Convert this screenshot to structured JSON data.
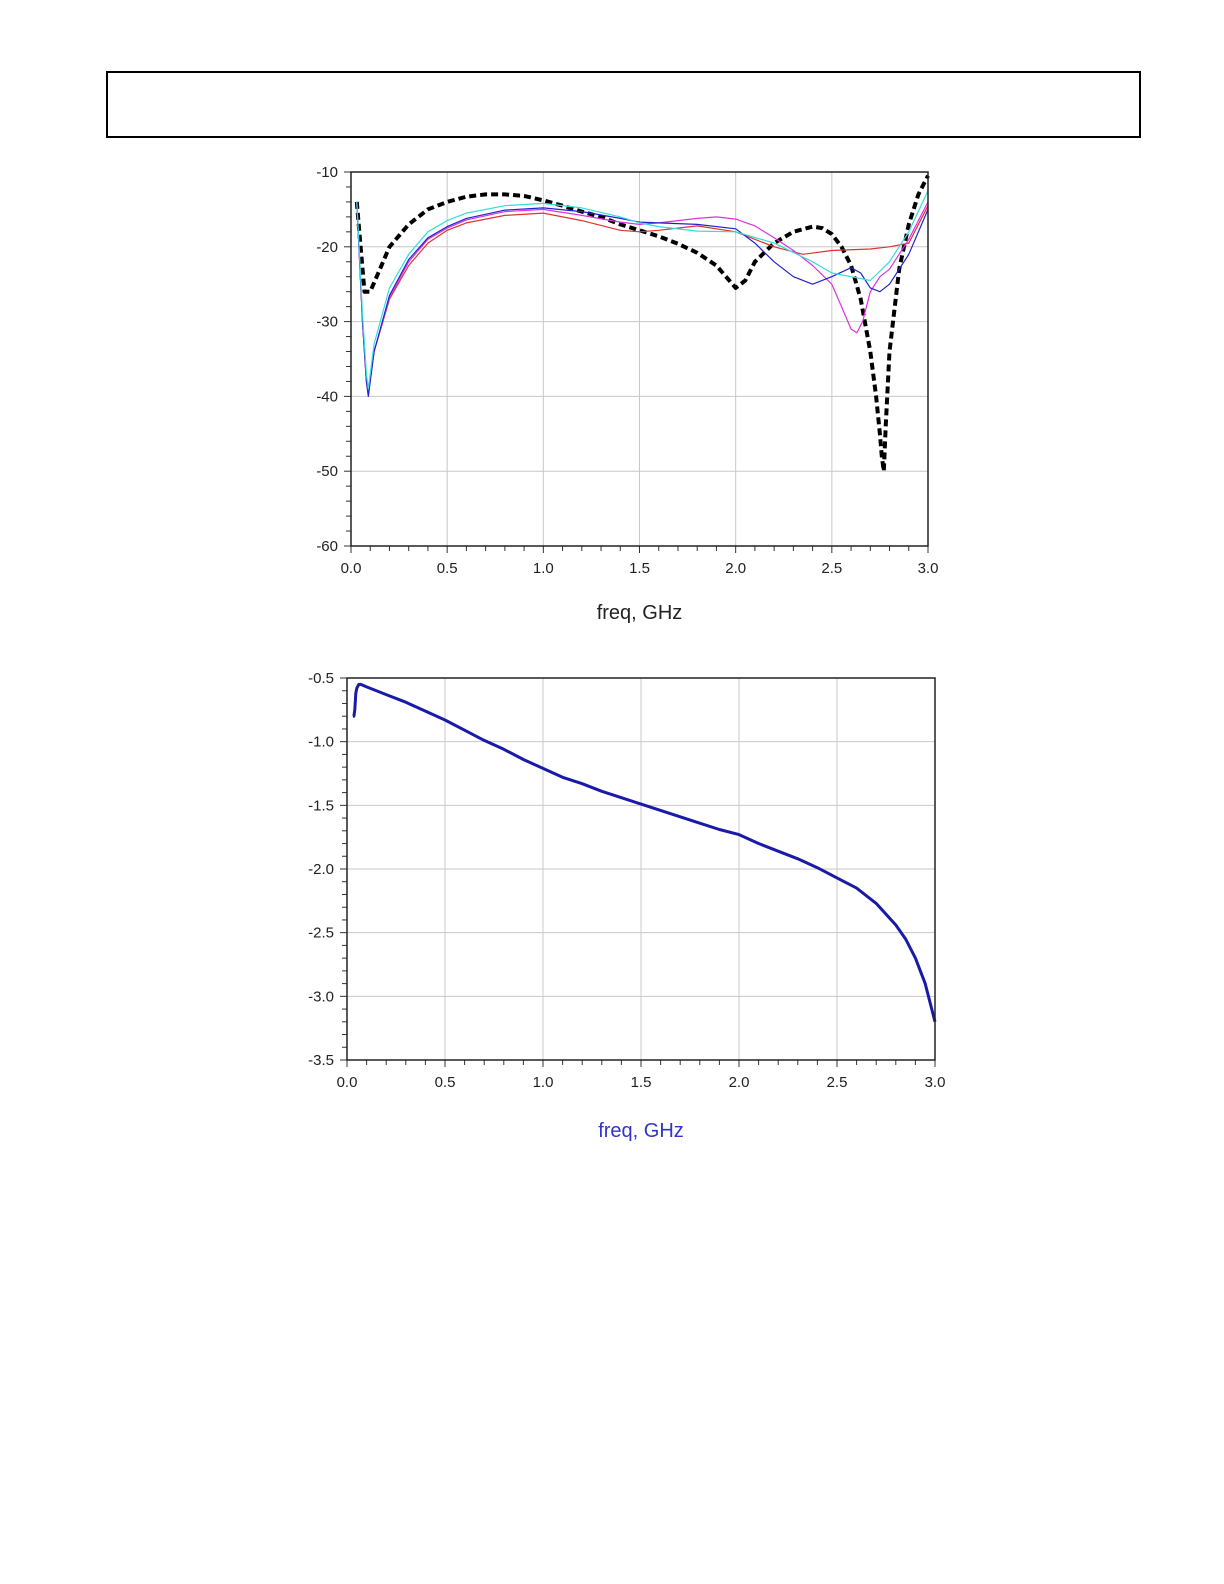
{
  "header": {
    "text": ""
  },
  "chart_data": [
    {
      "type": "line",
      "title": "",
      "xlabel": "freq, GHz",
      "ylabel": "",
      "xlim": [
        0.0,
        3.0
      ],
      "ylim": [
        -60,
        -10
      ],
      "xticks": [
        "0.0",
        "0.5",
        "1.0",
        "1.5",
        "2.0",
        "2.5",
        "3.0"
      ],
      "yticks": [
        "-10",
        "-20",
        "-30",
        "-40",
        "-50",
        "-60"
      ],
      "xlabel_color": "#222222",
      "grid": true,
      "series": [
        {
          "style": "dashed-thick",
          "color": "#000000",
          "x": [
            0.03,
            0.05,
            0.07,
            0.1,
            0.15,
            0.2,
            0.3,
            0.4,
            0.5,
            0.6,
            0.7,
            0.8,
            0.9,
            1.0,
            1.1,
            1.2,
            1.3,
            1.4,
            1.5,
            1.6,
            1.7,
            1.8,
            1.9,
            1.95,
            2.0,
            2.05,
            2.1,
            2.2,
            2.3,
            2.4,
            2.45,
            2.5,
            2.55,
            2.6,
            2.65,
            2.7,
            2.73,
            2.75,
            2.76,
            2.77,
            2.78,
            2.8,
            2.85,
            2.9,
            2.95,
            3.0
          ],
          "y": [
            -14,
            -20,
            -26,
            -26,
            -23,
            -20,
            -17,
            -15,
            -14,
            -13.3,
            -13,
            -13,
            -13.2,
            -13.8,
            -14.5,
            -15.3,
            -16,
            -17,
            -17.8,
            -18.6,
            -19.6,
            -20.8,
            -22.5,
            -24,
            -25.5,
            -24.5,
            -22,
            -19.5,
            -18,
            -17.3,
            -17.5,
            -18.3,
            -20,
            -22.5,
            -27,
            -34,
            -40,
            -45,
            -48,
            -50,
            -44,
            -34,
            -23,
            -17,
            -13,
            -10.5
          ]
        },
        {
          "style": "solid",
          "color": "#dd3333",
          "x": [
            0.03,
            0.06,
            0.08,
            0.09,
            0.12,
            0.2,
            0.3,
            0.4,
            0.5,
            0.6,
            0.8,
            1.0,
            1.2,
            1.4,
            1.5,
            1.6,
            1.8,
            2.0,
            2.2,
            2.35,
            2.5,
            2.7,
            2.8,
            2.9,
            3.0
          ],
          "y": [
            -14,
            -30,
            -38,
            -39.5,
            -34,
            -27,
            -22.5,
            -19.5,
            -17.8,
            -16.8,
            -15.8,
            -15.5,
            -16.5,
            -17.8,
            -18,
            -17.8,
            -17.2,
            -18,
            -20,
            -21,
            -20.5,
            -20.3,
            -20,
            -19.5,
            -14.5
          ]
        },
        {
          "style": "solid",
          "color": "#dd33dd",
          "x": [
            0.03,
            0.06,
            0.08,
            0.09,
            0.12,
            0.2,
            0.3,
            0.4,
            0.5,
            0.6,
            0.8,
            1.0,
            1.2,
            1.4,
            1.5,
            1.6,
            1.8,
            1.9,
            2.0,
            2.1,
            2.2,
            2.3,
            2.4,
            2.5,
            2.55,
            2.6,
            2.63,
            2.66,
            2.7,
            2.75,
            2.8,
            2.9,
            3.0
          ],
          "y": [
            -14,
            -30,
            -38,
            -39.8,
            -34,
            -26.8,
            -22,
            -19,
            -17.5,
            -16.4,
            -15.3,
            -15,
            -15.8,
            -16.7,
            -17,
            -16.8,
            -16.2,
            -16,
            -16.3,
            -17.2,
            -18.8,
            -20.5,
            -22.5,
            -25,
            -28,
            -31,
            -31.5,
            -30,
            -26,
            -24,
            -23,
            -19,
            -14
          ]
        },
        {
          "style": "solid",
          "color": "#2222cc",
          "x": [
            0.03,
            0.06,
            0.08,
            0.09,
            0.12,
            0.2,
            0.3,
            0.4,
            0.5,
            0.6,
            0.8,
            1.0,
            1.2,
            1.4,
            1.5,
            1.6,
            1.8,
            2.0,
            2.1,
            2.2,
            2.3,
            2.4,
            2.5,
            2.6,
            2.65,
            2.7,
            2.75,
            2.8,
            2.9,
            3.0
          ],
          "y": [
            -14,
            -30,
            -38,
            -40,
            -34,
            -26.5,
            -21.7,
            -18.8,
            -17.3,
            -16.2,
            -15.1,
            -14.8,
            -15.3,
            -16.2,
            -16.7,
            -16.8,
            -17,
            -17.6,
            -19.5,
            -22,
            -24,
            -25,
            -24,
            -22.8,
            -23.5,
            -25.5,
            -26,
            -25,
            -21,
            -15
          ]
        },
        {
          "style": "solid",
          "color": "#33dddd",
          "x": [
            0.03,
            0.06,
            0.08,
            0.09,
            0.12,
            0.2,
            0.3,
            0.4,
            0.5,
            0.6,
            0.8,
            1.0,
            1.2,
            1.4,
            1.5,
            1.6,
            1.8,
            2.0,
            2.2,
            2.4,
            2.5,
            2.6,
            2.7,
            2.8,
            2.9,
            3.0
          ],
          "y": [
            -14,
            -29,
            -37,
            -39,
            -33,
            -25.5,
            -21,
            -18,
            -16.5,
            -15.5,
            -14.5,
            -14.2,
            -14.8,
            -16,
            -16.8,
            -17.3,
            -17.9,
            -18,
            -19.5,
            -22,
            -23.5,
            -24,
            -24.5,
            -22,
            -18,
            -12.5
          ]
        }
      ]
    },
    {
      "type": "line",
      "title": "",
      "xlabel": "freq, GHz",
      "ylabel": "",
      "xlim": [
        0.0,
        3.0
      ],
      "ylim": [
        -3.5,
        -0.5
      ],
      "xticks": [
        "0.0",
        "0.5",
        "1.0",
        "1.5",
        "2.0",
        "2.5",
        "3.0"
      ],
      "yticks": [
        "-0.5",
        "-1.0",
        "-1.5",
        "-2.0",
        "-2.5",
        "-3.0",
        "-3.5"
      ],
      "xlabel_color": "#3333cc",
      "grid": true,
      "series": [
        {
          "style": "solid-thick",
          "color": "#1a1aa8",
          "x": [
            0.03,
            0.035,
            0.04,
            0.045,
            0.05,
            0.06,
            0.07,
            0.1,
            0.2,
            0.3,
            0.4,
            0.5,
            0.6,
            0.7,
            0.8,
            0.9,
            1.0,
            1.1,
            1.2,
            1.3,
            1.4,
            1.5,
            1.6,
            1.7,
            1.8,
            1.9,
            2.0,
            2.1,
            2.2,
            2.3,
            2.4,
            2.5,
            2.6,
            2.7,
            2.8,
            2.85,
            2.9,
            2.95,
            3.0
          ],
          "y": [
            -0.8,
            -0.8,
            -0.75,
            -0.62,
            -0.58,
            -0.55,
            -0.55,
            -0.57,
            -0.63,
            -0.69,
            -0.76,
            -0.83,
            -0.91,
            -0.99,
            -1.06,
            -1.14,
            -1.21,
            -1.28,
            -1.33,
            -1.39,
            -1.44,
            -1.49,
            -1.54,
            -1.59,
            -1.64,
            -1.69,
            -1.73,
            -1.8,
            -1.86,
            -1.92,
            -1.99,
            -2.07,
            -2.15,
            -2.27,
            -2.44,
            -2.55,
            -2.7,
            -2.9,
            -3.2
          ]
        }
      ]
    }
  ]
}
